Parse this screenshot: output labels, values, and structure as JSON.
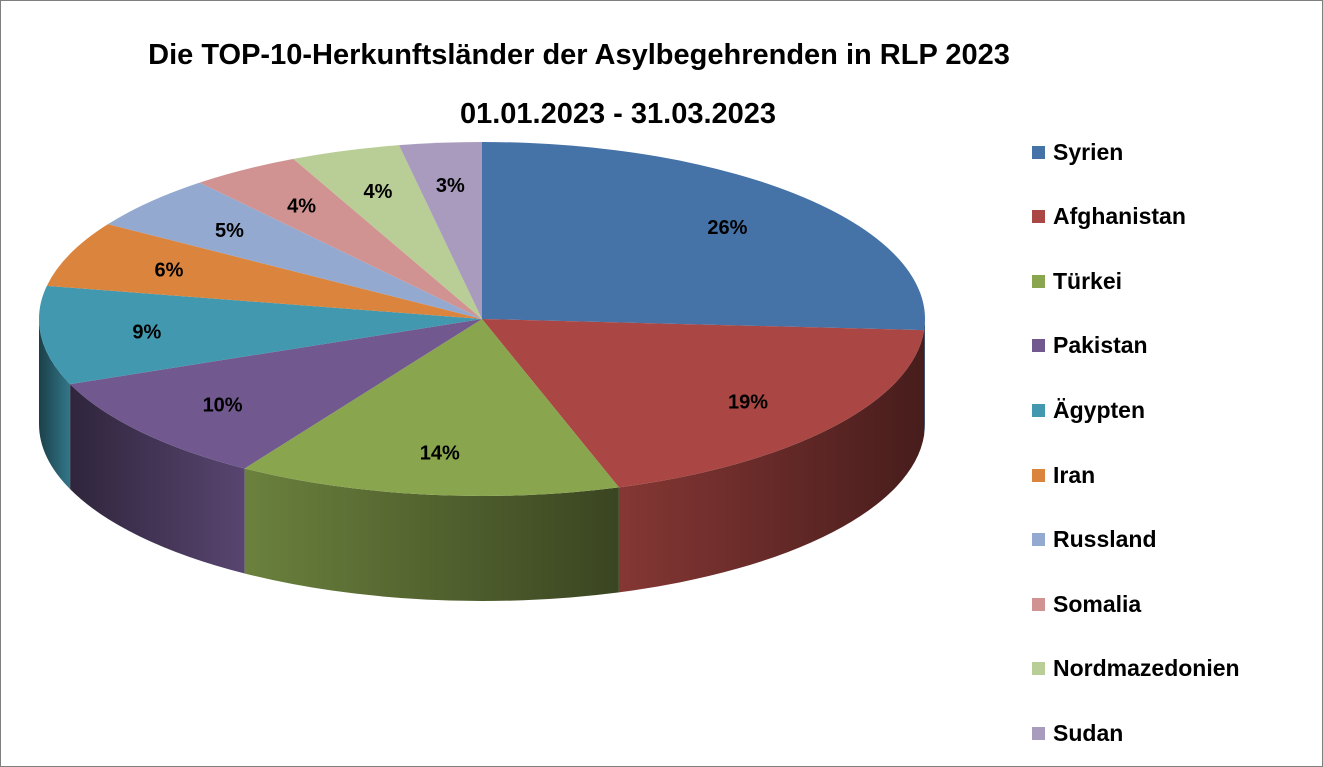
{
  "chart_data": {
    "type": "pie",
    "title": "Die TOP-10-Herkunftsländer der Asylbegehrenden in RLP 2023",
    "subtitle": "01.01.2023  - 31.03.2023",
    "legend_position": "right",
    "slices": [
      {
        "name": "Syrien",
        "value": 26,
        "label": "26%",
        "color": "#4572A7"
      },
      {
        "name": "Afghanistan",
        "value": 19,
        "label": "19%",
        "color": "#AA4643"
      },
      {
        "name": "Türkei",
        "value": 14,
        "label": "14%",
        "color": "#89A54E"
      },
      {
        "name": "Pakistan",
        "value": 10,
        "label": "10%",
        "color": "#71588F"
      },
      {
        "name": "Ägypten",
        "value": 9,
        "label": "9%",
        "color": "#4198AF"
      },
      {
        "name": "Iran",
        "value": 6,
        "label": "6%",
        "color": "#DB843D"
      },
      {
        "name": "Russland",
        "value": 5,
        "label": "5%",
        "color": "#93A9CF"
      },
      {
        "name": "Somalia",
        "value": 4,
        "label": "4%",
        "color": "#D19392"
      },
      {
        "name": "Nordmazedonien",
        "value": 4,
        "label": "4%",
        "color": "#B9CD96"
      },
      {
        "name": "Sudan",
        "value": 3,
        "label": "3%",
        "color": "#A99BBD"
      }
    ]
  }
}
